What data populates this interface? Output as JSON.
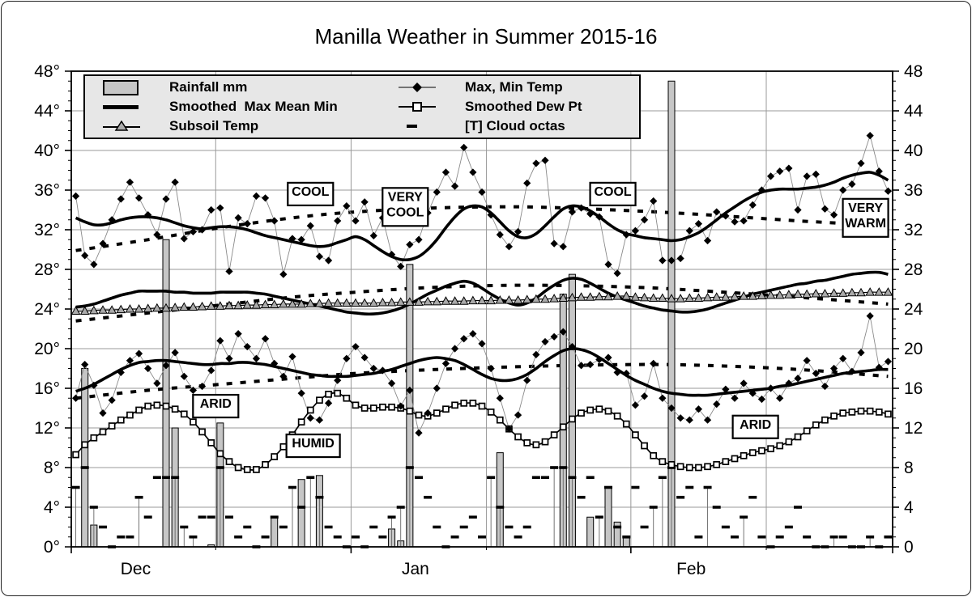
{
  "legend": {
    "items": [
      {
        "icon": "rainfall-swatch",
        "label": "Rainfall mm"
      },
      {
        "icon": "smoothed-line",
        "label": "Smoothed  Max Mean Min"
      },
      {
        "icon": "subsoil-marker",
        "label": "Subsoil Temp"
      },
      {
        "icon": "maxmin-marker",
        "label": "Max, Min Temp"
      },
      {
        "icon": "dewpt-marker",
        "label": "Smoothed Dew Pt"
      },
      {
        "icon": "cloud-dash",
        "label": "[T] Cloud octas"
      }
    ]
  },
  "chart_data": {
    "type": "composite",
    "title": "Manilla Weather in Summer 2015-16",
    "days_total": 91,
    "y_axis": {
      "min": 0,
      "max": 48,
      "major_step": 4,
      "minor_step": 1,
      "left_labels": [
        "0°",
        "4°",
        "8°",
        "12°",
        "16°",
        "20°",
        "24°",
        "28°",
        "32°",
        "36°",
        "40°",
        "44°",
        "48°"
      ],
      "right_labels": [
        "0",
        "4",
        "8",
        "12",
        "16",
        "20",
        "24",
        "28",
        "32",
        "36",
        "40",
        "44",
        "48"
      ]
    },
    "x_axis": {
      "months": [
        {
          "label": "Dec",
          "days": 31
        },
        {
          "label": "Jan",
          "days": 31
        },
        {
          "label": "Feb",
          "days": 29
        }
      ],
      "mid_month_gridline_boundaries": [
        16,
        46,
        77
      ]
    },
    "series": {
      "max_temp": [
        35.4,
        29.4,
        28.5,
        30.6,
        33.0,
        35.1,
        36.8,
        35.2,
        33.5,
        31.5,
        35.1,
        36.8,
        31.1,
        31.8,
        32.0,
        34.0,
        34.2,
        27.8,
        33.2,
        32.6,
        35.4,
        35.2,
        32.9,
        27.5,
        31.1,
        31.0,
        32.4,
        29.3,
        28.9,
        32.9,
        34.4,
        32.9,
        34.8,
        31.4,
        33.2,
        29.5,
        28.3,
        30.5,
        31.0,
        33.7,
        35.8,
        37.8,
        36.4,
        40.3,
        37.8,
        35.8,
        33.5,
        31.5,
        30.3,
        31.8,
        36.7,
        38.7,
        39.0,
        30.6,
        30.3,
        33.8,
        34.2,
        33.6,
        33.3,
        28.5,
        27.6,
        31.5,
        31.9,
        33.0,
        34.9,
        28.9,
        28.9,
        29.1,
        31.9,
        32.6,
        30.9,
        33.8,
        33.4,
        32.8,
        32.9,
        34.5,
        36.0,
        37.4,
        37.9,
        38.2,
        34.0,
        37.4,
        37.6,
        34.1,
        33.5,
        36.0,
        36.6,
        38.7,
        41.5,
        37.9,
        35.9
      ],
      "min_temp": [
        15.0,
        18.4,
        16.3,
        13.5,
        14.8,
        17.6,
        18.8,
        19.5,
        18.0,
        16.5,
        18.3,
        19.6,
        17.2,
        15.8,
        16.2,
        17.8,
        20.8,
        19.0,
        21.5,
        20.2,
        19.0,
        21.0,
        18.5,
        17.2,
        19.2,
        15.5,
        13.0,
        12.8,
        14.5,
        16.8,
        19.0,
        20.2,
        19.1,
        18.0,
        17.8,
        16.5,
        14.2,
        15.8,
        11.5,
        13.5,
        16.0,
        18.5,
        20.0,
        21.0,
        21.5,
        20.5,
        18.0,
        15.0,
        11.9,
        13.3,
        16.8,
        19.4,
        20.7,
        21.2,
        21.7,
        20.2,
        18.3,
        18.4,
        18.9,
        19.1,
        17.6,
        17.5,
        14.3,
        15.2,
        18.5,
        15.0,
        14.0,
        13.0,
        12.8,
        13.9,
        12.8,
        14.4,
        15.9,
        15.0,
        16.5,
        15.5,
        14.9,
        16.0,
        15.0,
        16.5,
        17.0,
        18.8,
        17.5,
        16.2,
        18.0,
        19.0,
        17.7,
        19.6,
        23.3,
        18.1,
        18.7
      ],
      "smoothed_max": [
        33.2,
        32.8,
        32.5,
        32.5,
        32.7,
        33.0,
        33.2,
        33.3,
        33.3,
        33.2,
        33.0,
        32.7,
        32.4,
        32.2,
        32.1,
        32.2,
        32.3,
        32.3,
        32.2,
        32.0,
        31.7,
        31.4,
        31.2,
        31.0,
        30.8,
        30.6,
        30.4,
        30.3,
        30.4,
        30.7,
        31.0,
        31.3,
        31.0,
        30.4,
        29.8,
        29.3,
        29.0,
        29.0,
        29.3,
        30.0,
        31.0,
        32.2,
        33.3,
        34.1,
        34.4,
        34.3,
        33.7,
        32.8,
        31.9,
        31.3,
        31.2,
        31.6,
        32.4,
        33.3,
        34.1,
        34.4,
        34.3,
        33.9,
        33.3,
        32.6,
        32.0,
        31.6,
        31.4,
        31.2,
        31.1,
        31.0,
        30.9,
        31.0,
        31.3,
        31.7,
        32.3,
        33.0,
        33.7,
        34.3,
        34.9,
        35.4,
        35.8,
        36.0,
        36.1,
        36.1,
        36.1,
        36.2,
        36.3,
        36.5,
        36.8,
        37.2,
        37.5,
        37.7,
        37.8,
        37.5,
        37.0
      ],
      "smoothed_mean": [
        24.2,
        24.3,
        24.5,
        24.8,
        25.1,
        25.4,
        25.6,
        25.8,
        25.8,
        25.8,
        25.8,
        25.7,
        25.7,
        25.6,
        25.6,
        25.6,
        25.7,
        25.7,
        25.7,
        25.7,
        25.6,
        25.5,
        25.3,
        25.1,
        24.9,
        24.7,
        24.5,
        24.3,
        24.1,
        23.9,
        23.7,
        23.6,
        23.5,
        23.5,
        23.6,
        23.8,
        24.1,
        24.5,
        25.0,
        25.5,
        25.9,
        26.3,
        26.6,
        26.8,
        26.6,
        26.1,
        25.5,
        25.0,
        24.6,
        24.4,
        24.6,
        25.1,
        25.8,
        26.4,
        26.9,
        27.1,
        27.0,
        26.6,
        26.1,
        25.6,
        25.2,
        24.9,
        24.6,
        24.3,
        24.1,
        23.9,
        23.8,
        23.7,
        23.7,
        23.8,
        24.0,
        24.3,
        24.6,
        24.9,
        25.2,
        25.5,
        25.7,
        25.9,
        26.1,
        26.3,
        26.5,
        26.6,
        26.8,
        26.9,
        27.1,
        27.3,
        27.5,
        27.6,
        27.7,
        27.7,
        27.5
      ],
      "smoothed_min": [
        15.7,
        16.0,
        16.4,
        16.9,
        17.4,
        17.9,
        18.3,
        18.6,
        18.7,
        18.8,
        18.8,
        18.7,
        18.6,
        18.5,
        18.4,
        18.4,
        18.5,
        18.5,
        18.6,
        18.6,
        18.5,
        18.4,
        18.2,
        18.0,
        17.8,
        17.6,
        17.4,
        17.3,
        17.2,
        17.2,
        17.2,
        17.3,
        17.4,
        17.5,
        17.7,
        17.9,
        18.2,
        18.5,
        18.8,
        19.0,
        19.1,
        19.0,
        18.8,
        18.4,
        17.9,
        17.4,
        17.0,
        16.8,
        16.8,
        17.0,
        17.4,
        18.0,
        18.7,
        19.3,
        19.8,
        20.0,
        19.9,
        19.6,
        19.1,
        18.5,
        17.9,
        17.3,
        16.8,
        16.4,
        16.0,
        15.7,
        15.5,
        15.4,
        15.3,
        15.3,
        15.3,
        15.4,
        15.5,
        15.6,
        15.7,
        15.8,
        15.9,
        16.0,
        16.2,
        16.3,
        16.5,
        16.7,
        16.9,
        17.1,
        17.3,
        17.5,
        17.6,
        17.7,
        17.8,
        17.9,
        17.9
      ],
      "subsoil_temp": [
        23.8,
        23.8,
        23.85,
        23.9,
        23.9,
        23.95,
        24.0,
        24.0,
        24.05,
        24.1,
        24.1,
        24.15,
        24.2,
        24.2,
        24.25,
        24.3,
        24.3,
        24.35,
        24.35,
        24.4,
        24.4,
        24.45,
        24.45,
        24.5,
        24.5,
        24.5,
        24.55,
        24.55,
        24.6,
        24.6,
        24.6,
        24.6,
        24.6,
        24.6,
        24.65,
        24.65,
        24.7,
        24.7,
        24.7,
        24.75,
        24.75,
        24.8,
        24.8,
        24.8,
        24.85,
        24.85,
        24.85,
        24.9,
        24.9,
        24.9,
        24.95,
        25.0,
        25.0,
        25.05,
        25.1,
        25.15,
        25.2,
        25.2,
        25.25,
        25.25,
        25.3,
        25.3,
        25.2,
        25.15,
        25.1,
        25.1,
        25.05,
        25.05,
        25.1,
        25.1,
        25.15,
        25.2,
        25.2,
        25.25,
        25.3,
        25.3,
        25.35,
        25.4,
        25.4,
        25.45,
        25.5,
        25.5,
        25.55,
        25.55,
        25.6,
        25.6,
        25.65,
        25.65,
        25.7,
        25.7,
        25.7
      ],
      "smoothed_dew_pt": [
        9.3,
        10.3,
        11.0,
        11.6,
        12.2,
        12.8,
        13.3,
        13.8,
        14.2,
        14.3,
        14.2,
        13.9,
        13.4,
        12.6,
        11.6,
        10.5,
        9.4,
        8.6,
        8.0,
        7.8,
        7.8,
        8.3,
        9.1,
        10.1,
        11.3,
        12.6,
        13.8,
        14.8,
        15.4,
        15.5,
        15.0,
        14.3,
        14.0,
        14.0,
        14.1,
        14.1,
        14.0,
        13.7,
        13.3,
        13.2,
        13.5,
        13.9,
        14.3,
        14.5,
        14.5,
        14.2,
        13.6,
        12.8,
        11.9,
        11.1,
        10.5,
        10.3,
        10.6,
        11.3,
        12.1,
        12.9,
        13.5,
        13.8,
        13.9,
        13.7,
        13.2,
        12.4,
        11.3,
        10.2,
        9.2,
        8.6,
        8.3,
        8.1,
        8.0,
        8.0,
        8.1,
        8.3,
        8.6,
        8.9,
        9.2,
        9.5,
        9.7,
        9.9,
        10.2,
        10.6,
        11.1,
        11.7,
        12.3,
        12.8,
        13.2,
        13.5,
        13.6,
        13.7,
        13.7,
        13.6,
        13.4
      ],
      "cloud_octas": [
        6,
        8,
        4,
        2,
        0,
        1,
        1,
        5,
        3,
        7,
        7,
        7,
        2,
        1,
        3,
        3,
        8,
        3,
        1,
        2,
        0,
        1,
        3,
        2,
        6,
        4,
        7,
        5,
        2,
        1,
        0,
        1,
        0,
        2,
        1,
        3,
        4,
        8,
        7,
        5,
        2,
        0,
        1,
        2,
        3,
        1,
        7,
        4,
        2,
        1,
        2,
        7,
        7,
        8,
        8,
        7,
        5,
        7,
        3,
        6,
        2,
        1,
        6,
        2,
        4,
        7,
        8,
        5,
        6,
        1,
        6,
        4,
        2,
        1,
        3,
        5,
        1,
        0,
        1,
        2,
        4,
        1,
        0,
        0,
        1,
        1,
        0,
        0,
        1,
        0,
        1
      ],
      "thunder_day_indices": [
        0,
        2,
        7,
        11,
        12,
        13,
        16,
        24,
        26,
        27,
        35,
        36,
        37,
        46,
        47,
        53,
        54,
        55,
        58,
        64,
        65,
        66,
        70,
        74,
        84,
        88
      ],
      "rain_events": [
        [
          1,
          18
        ],
        [
          2,
          2.2
        ],
        [
          10,
          31
        ],
        [
          11,
          12
        ],
        [
          15,
          0.2
        ],
        [
          16,
          12.5
        ],
        [
          22,
          3
        ],
        [
          25,
          6.8
        ],
        [
          27,
          7.2
        ],
        [
          35,
          1.8
        ],
        [
          36,
          0.6
        ],
        [
          37,
          28.5
        ],
        [
          47,
          9.5
        ],
        [
          54,
          25.5
        ],
        [
          55,
          27.5
        ],
        [
          57,
          3
        ],
        [
          59,
          6
        ],
        [
          60,
          2.5
        ],
        [
          61,
          1
        ],
        [
          66,
          47
        ]
      ],
      "normal_max_keypoints": [
        [
          0,
          29.9
        ],
        [
          8,
          31.0
        ],
        [
          16,
          32.2
        ],
        [
          24,
          33.2
        ],
        [
          31,
          33.8
        ],
        [
          40,
          34.2
        ],
        [
          50,
          34.3
        ],
        [
          62,
          33.9
        ],
        [
          70,
          33.5
        ],
        [
          80,
          32.9
        ],
        [
          90,
          32.4
        ]
      ],
      "normal_mean_keypoints": [
        [
          0,
          22.8
        ],
        [
          8,
          23.6
        ],
        [
          16,
          24.4
        ],
        [
          24,
          25.2
        ],
        [
          31,
          25.7
        ],
        [
          40,
          26.2
        ],
        [
          50,
          26.4
        ],
        [
          62,
          26.2
        ],
        [
          70,
          25.8
        ],
        [
          80,
          25.2
        ],
        [
          90,
          24.5
        ]
      ],
      "normal_min_keypoints": [
        [
          0,
          15.0
        ],
        [
          8,
          15.8
        ],
        [
          16,
          16.4
        ],
        [
          24,
          17.0
        ],
        [
          31,
          17.5
        ],
        [
          40,
          17.9
        ],
        [
          50,
          18.2
        ],
        [
          62,
          18.4
        ],
        [
          70,
          18.3
        ],
        [
          80,
          17.9
        ],
        [
          90,
          17.2
        ]
      ]
    },
    "annotations": [
      {
        "lines": [
          "COOL"
        ],
        "day": 26.5,
        "temp": 35.6
      },
      {
        "lines": [
          "VERY",
          "COOL"
        ],
        "day": 37,
        "temp": 34.3
      },
      {
        "lines": [
          "COOL"
        ],
        "day": 60,
        "temp": 35.6
      },
      {
        "lines": [
          "VERY",
          "WARM"
        ],
        "day": 88,
        "temp": 33.2
      },
      {
        "lines": [
          "ARID"
        ],
        "day": 16,
        "temp": 14.2
      },
      {
        "lines": [
          "HUMID"
        ],
        "day": 26.8,
        "temp": 10.2
      },
      {
        "lines": [
          "ARID"
        ],
        "day": 75.8,
        "temp": 12.1
      }
    ],
    "colors": {
      "ink": "#000000",
      "grid": "#999999",
      "bar_fill": "#c6c6c6",
      "subsoil_fill": "#aaaaaa",
      "legend_bg": "#e7e7e7",
      "connector": "#8a8a8a"
    }
  }
}
